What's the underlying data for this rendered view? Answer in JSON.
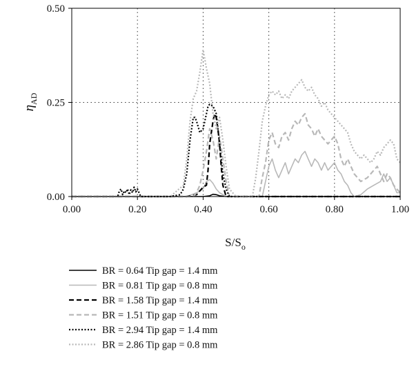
{
  "chart_data": {
    "type": "line",
    "xlabel": "S/S",
    "xlabel_sub": "o",
    "ylabel": "η",
    "ylabel_sub": "AD",
    "xlim": [
      0.0,
      1.0
    ],
    "ylim": [
      0.0,
      0.5
    ],
    "xticks": [
      0.0,
      0.2,
      0.4,
      0.6,
      0.8,
      1.0
    ],
    "xtick_labels": [
      "0.00",
      "0.20",
      "0.40",
      "0.60",
      "0.80",
      "1.00"
    ],
    "yticks": [
      0.0,
      0.25,
      0.5
    ],
    "ytick_labels": [
      "0.00",
      "0.25",
      "0.50"
    ],
    "grid": "dotted at x = 0.2, 0.4, 0.6, 0.8 and y = 0.25",
    "legend_position": "below",
    "series": [
      {
        "name": "BR = 0.64 Tip gap = 1.4 mm",
        "color": "#000000",
        "dash": "solid",
        "x": [
          0.0,
          0.05,
          0.1,
          0.15,
          0.2,
          0.25,
          0.3,
          0.35,
          0.38,
          0.4,
          0.42,
          0.43,
          0.44,
          0.45,
          0.47,
          0.5,
          0.55,
          0.6,
          0.7,
          0.8,
          0.9,
          1.0
        ],
        "y": [
          0.0,
          0.0,
          0.0,
          0.0,
          0.0,
          0.0,
          0.0,
          0.0,
          0.0,
          0.0,
          0.002,
          0.006,
          0.005,
          0.002,
          0.0,
          0.0,
          0.0,
          0.0,
          0.0,
          0.0,
          0.0,
          0.0
        ]
      },
      {
        "name": "BR = 0.81 Tip gap = 0.8 mm",
        "color": "#b8b8b8",
        "dash": "solid",
        "x": [
          0.0,
          0.3,
          0.35,
          0.38,
          0.4,
          0.41,
          0.42,
          0.43,
          0.44,
          0.45,
          0.47,
          0.5,
          0.55,
          0.58,
          0.59,
          0.6,
          0.61,
          0.62,
          0.63,
          0.64,
          0.65,
          0.66,
          0.67,
          0.68,
          0.69,
          0.7,
          0.71,
          0.72,
          0.73,
          0.74,
          0.75,
          0.76,
          0.77,
          0.78,
          0.79,
          0.8,
          0.81,
          0.82,
          0.83,
          0.84,
          0.85,
          0.86,
          0.88,
          0.9,
          0.92,
          0.94,
          0.95,
          0.96,
          0.97,
          0.98,
          0.99,
          1.0
        ],
        "y": [
          0.0,
          0.0,
          0.0,
          0.01,
          0.02,
          0.04,
          0.045,
          0.035,
          0.02,
          0.01,
          0.0,
          0.0,
          0.0,
          0.0,
          0.04,
          0.08,
          0.1,
          0.07,
          0.05,
          0.07,
          0.09,
          0.06,
          0.08,
          0.1,
          0.09,
          0.11,
          0.12,
          0.1,
          0.08,
          0.1,
          0.09,
          0.07,
          0.09,
          0.07,
          0.08,
          0.09,
          0.07,
          0.06,
          0.04,
          0.03,
          0.01,
          0.0,
          0.005,
          0.02,
          0.03,
          0.04,
          0.06,
          0.04,
          0.05,
          0.03,
          0.01,
          0.01
        ]
      },
      {
        "name": "BR = 1.58 Tip gap = 1.4 mm",
        "color": "#000000",
        "dash": "long-dash",
        "x": [
          0.0,
          0.35,
          0.38,
          0.39,
          0.4,
          0.41,
          0.415,
          0.42,
          0.425,
          0.43,
          0.435,
          0.44,
          0.445,
          0.45,
          0.455,
          0.46,
          0.47,
          0.5,
          1.0
        ],
        "y": [
          0.0,
          0.0,
          0.005,
          0.015,
          0.025,
          0.03,
          0.07,
          0.14,
          0.17,
          0.2,
          0.22,
          0.21,
          0.18,
          0.14,
          0.08,
          0.03,
          0.0,
          0.0,
          0.0
        ]
      },
      {
        "name": "BR = 1.51 Tip gap = 0.8 mm",
        "color": "#b8b8b8",
        "dash": "long-dash",
        "x": [
          0.0,
          0.37,
          0.38,
          0.39,
          0.4,
          0.41,
          0.42,
          0.43,
          0.44,
          0.45,
          0.46,
          0.47,
          0.48,
          0.5,
          0.57,
          0.58,
          0.59,
          0.6,
          0.61,
          0.62,
          0.63,
          0.64,
          0.65,
          0.66,
          0.67,
          0.68,
          0.69,
          0.7,
          0.71,
          0.72,
          0.73,
          0.74,
          0.75,
          0.76,
          0.77,
          0.78,
          0.79,
          0.8,
          0.81,
          0.82,
          0.83,
          0.84,
          0.85,
          0.86,
          0.88,
          0.9,
          0.92,
          0.93,
          0.94,
          0.95,
          0.96,
          0.97,
          0.98,
          0.99,
          1.0
        ],
        "y": [
          0.0,
          0.0,
          0.01,
          0.03,
          0.07,
          0.12,
          0.18,
          0.15,
          0.1,
          0.16,
          0.1,
          0.04,
          0.0,
          0.0,
          0.0,
          0.05,
          0.09,
          0.15,
          0.17,
          0.14,
          0.13,
          0.16,
          0.17,
          0.15,
          0.18,
          0.2,
          0.19,
          0.21,
          0.22,
          0.19,
          0.18,
          0.16,
          0.18,
          0.16,
          0.15,
          0.14,
          0.15,
          0.16,
          0.14,
          0.1,
          0.08,
          0.1,
          0.08,
          0.06,
          0.04,
          0.05,
          0.07,
          0.08,
          0.06,
          0.04,
          0.06,
          0.05,
          0.03,
          0.02,
          0.01
        ]
      },
      {
        "name": "BR = 2.94 Tip gap = 1.4 mm",
        "color": "#000000",
        "dash": "dotted",
        "x": [
          0.0,
          0.05,
          0.1,
          0.14,
          0.145,
          0.15,
          0.155,
          0.16,
          0.165,
          0.17,
          0.175,
          0.18,
          0.185,
          0.19,
          0.195,
          0.2,
          0.21,
          0.25,
          0.3,
          0.33,
          0.34,
          0.35,
          0.36,
          0.37,
          0.375,
          0.38,
          0.39,
          0.4,
          0.41,
          0.415,
          0.42,
          0.43,
          0.44,
          0.445,
          0.45,
          0.455,
          0.46,
          0.47,
          0.48,
          0.5,
          1.0
        ],
        "y": [
          0.0,
          0.0,
          0.0,
          0.0,
          0.015,
          0.02,
          0.005,
          0.015,
          0.01,
          0.02,
          0.005,
          0.018,
          0.01,
          0.025,
          0.012,
          0.02,
          0.0,
          0.0,
          0.0,
          0.005,
          0.02,
          0.06,
          0.15,
          0.21,
          0.21,
          0.2,
          0.17,
          0.18,
          0.22,
          0.24,
          0.245,
          0.24,
          0.22,
          0.18,
          0.14,
          0.1,
          0.06,
          0.02,
          0.0,
          0.0,
          0.0
        ]
      },
      {
        "name": "BR = 2.86 Tip gap = 0.8 mm",
        "color": "#b8b8b8",
        "dash": "dotted",
        "x": [
          0.0,
          0.3,
          0.34,
          0.35,
          0.36,
          0.37,
          0.38,
          0.39,
          0.395,
          0.4,
          0.41,
          0.42,
          0.43,
          0.44,
          0.45,
          0.46,
          0.47,
          0.48,
          0.5,
          0.55,
          0.56,
          0.57,
          0.58,
          0.59,
          0.6,
          0.61,
          0.62,
          0.63,
          0.64,
          0.65,
          0.66,
          0.67,
          0.68,
          0.69,
          0.7,
          0.71,
          0.72,
          0.73,
          0.74,
          0.75,
          0.76,
          0.77,
          0.78,
          0.79,
          0.8,
          0.81,
          0.82,
          0.83,
          0.84,
          0.85,
          0.86,
          0.87,
          0.88,
          0.89,
          0.9,
          0.91,
          0.92,
          0.93,
          0.94,
          0.95,
          0.96,
          0.97,
          0.98,
          0.99,
          1.0
        ],
        "y": [
          0.0,
          0.0,
          0.03,
          0.1,
          0.2,
          0.26,
          0.28,
          0.33,
          0.36,
          0.39,
          0.34,
          0.3,
          0.22,
          0.18,
          0.21,
          0.15,
          0.08,
          0.02,
          0.0,
          0.0,
          0.05,
          0.12,
          0.2,
          0.24,
          0.27,
          0.28,
          0.27,
          0.28,
          0.26,
          0.27,
          0.26,
          0.28,
          0.29,
          0.3,
          0.31,
          0.29,
          0.28,
          0.29,
          0.27,
          0.26,
          0.24,
          0.25,
          0.23,
          0.22,
          0.21,
          0.2,
          0.19,
          0.18,
          0.17,
          0.14,
          0.12,
          0.11,
          0.1,
          0.11,
          0.1,
          0.09,
          0.1,
          0.12,
          0.11,
          0.13,
          0.14,
          0.15,
          0.14,
          0.1,
          0.09
        ]
      }
    ]
  }
}
